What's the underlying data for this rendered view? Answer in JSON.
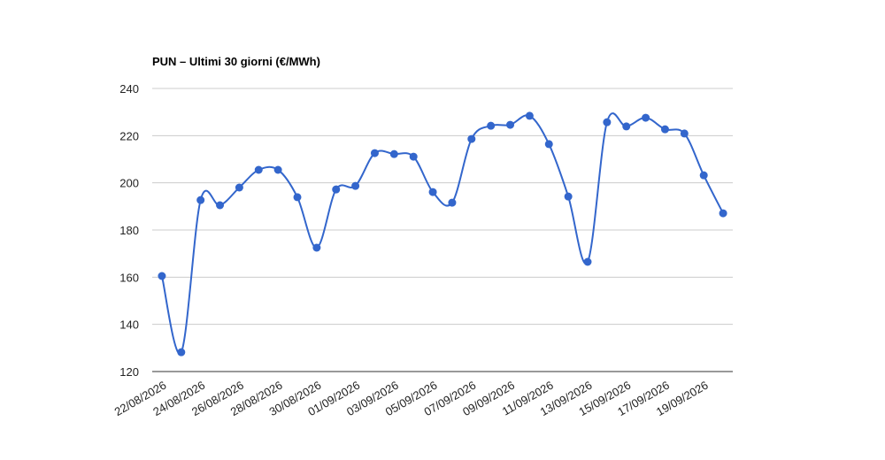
{
  "chart_data": {
    "type": "line",
    "title": "PUN – Ultimi 30 giorni (€/MWh)",
    "categories": [
      "22/08/2026",
      null,
      "24/08/2026",
      null,
      "26/08/2026",
      null,
      "28/08/2026",
      null,
      "30/08/2026",
      null,
      "01/09/2026",
      null,
      "03/09/2026",
      null,
      "05/09/2026",
      null,
      "07/09/2026",
      null,
      "09/09/2026",
      null,
      "11/09/2026",
      null,
      "13/09/2026",
      null,
      "15/09/2026",
      null,
      "17/09/2026",
      null,
      "19/09/2026",
      null
    ],
    "series": [
      {
        "name": "PUN",
        "color": "#3366cc",
        "values": [
          160.5,
          128.2,
          192.7,
          190.5,
          198,
          205.5,
          205.5,
          193.9,
          172.5,
          197.2,
          198.7,
          212.6,
          212.2,
          211.1,
          196.1,
          191.6,
          218.6,
          224.2,
          224.6,
          228.4,
          216.4,
          194.2,
          166.5,
          225.7,
          223.9,
          227.6,
          222.7,
          220.9,
          203.2,
          187.1
        ]
      }
    ],
    "ylim": [
      120,
      240
    ],
    "yticks": [
      120,
      140,
      160,
      180,
      200,
      220,
      240
    ],
    "grid": true,
    "smooth": true
  }
}
